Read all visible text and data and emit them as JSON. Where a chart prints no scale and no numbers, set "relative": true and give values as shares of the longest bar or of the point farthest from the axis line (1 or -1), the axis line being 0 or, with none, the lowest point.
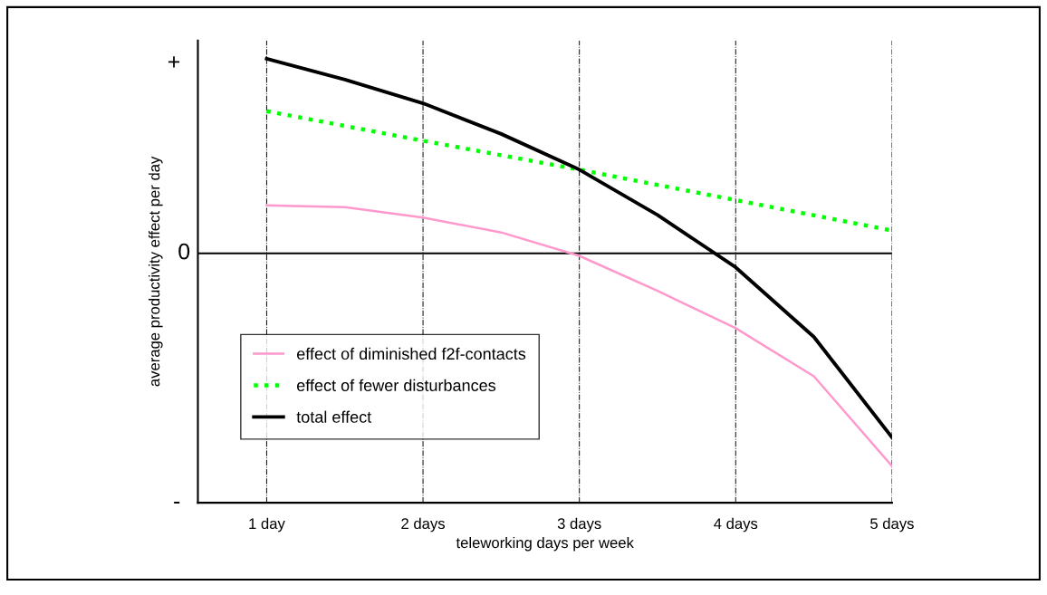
{
  "chart_data": {
    "type": "line",
    "xlabel": "teleworking days per week",
    "ylabel": "average productivity effect per day",
    "relative": true,
    "xlim": [
      0.56,
      5
    ],
    "xticks": [
      {
        "value": 1,
        "label": "1 day"
      },
      {
        "value": 2,
        "label": "2 days"
      },
      {
        "value": 3,
        "label": "3 days"
      },
      {
        "value": 4,
        "label": "4 days"
      },
      {
        "value": 5,
        "label": "5 days"
      }
    ],
    "annotations": [
      "+",
      "0",
      "-"
    ],
    "grid": "x",
    "legend": "lower left",
    "marker": "none",
    "ref_lines": [
      {
        "axis": "y",
        "value": 0,
        "color": "#000000"
      }
    ],
    "series": [
      {
        "name": "effect of diminished f2f-contacts",
        "color": "#ff99cc",
        "line_style": "solid",
        "x": [
          1,
          1.5,
          2,
          2.5,
          3,
          3.5,
          4,
          4.5,
          5
        ],
        "values": [
          0.225,
          0.217,
          0.168,
          0.098,
          -0.012,
          -0.176,
          -0.352,
          -0.578,
          -1
        ]
      },
      {
        "name": "effect of fewer disturbances",
        "color": "#00ff00",
        "line_style": "dotted",
        "x": [
          1,
          2,
          3,
          4,
          5
        ],
        "values": [
          0.668,
          0.529,
          0.393,
          0.25,
          0.107
        ]
      },
      {
        "name": "total effect",
        "color": "#000000",
        "line_style": "solid",
        "x": [
          1,
          1.5,
          2,
          2.5,
          3,
          3.5,
          4,
          4.5,
          5
        ],
        "values": [
          0.914,
          0.816,
          0.705,
          0.561,
          0.393,
          0.18,
          -0.066,
          -0.393,
          -0.865
        ]
      }
    ]
  }
}
